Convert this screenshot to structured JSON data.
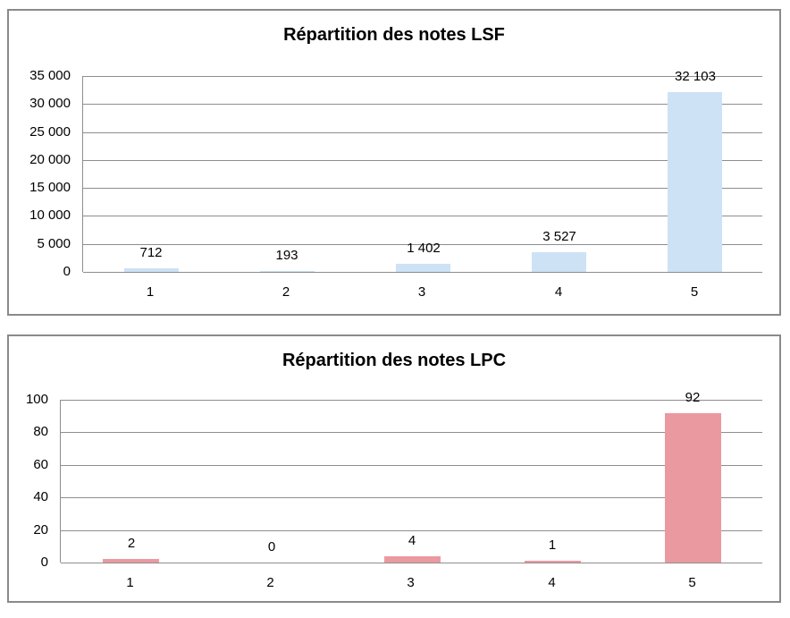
{
  "colors": {
    "panel_border": "#8a8a8a",
    "gridline": "#8e8e8e",
    "text": "#000000",
    "lsf_bar": "#cde2f5",
    "lpc_bar": "#eb99a0"
  },
  "chart_data": [
    {
      "type": "bar",
      "title": "Répartition des notes LSF",
      "categories": [
        "1",
        "2",
        "3",
        "4",
        "5"
      ],
      "values": [
        712,
        193,
        1402,
        3527,
        32103
      ],
      "value_labels": [
        "712",
        "193",
        "1 402",
        "3 527",
        "32 103"
      ],
      "xlabel": "",
      "ylabel": "",
      "ylim": [
        0,
        35000
      ],
      "ytick_step": 5000,
      "ytick_labels": [
        "0",
        "5 000",
        "10 000",
        "15 000",
        "20 000",
        "25 000",
        "30 000",
        "35 000"
      ],
      "grid": true,
      "legend": "none",
      "bar_color": "#cde2f5"
    },
    {
      "type": "bar",
      "title": "Répartition des notes LPC",
      "categories": [
        "1",
        "2",
        "3",
        "4",
        "5"
      ],
      "values": [
        2,
        0,
        4,
        1,
        92
      ],
      "value_labels": [
        "2",
        "0",
        "4",
        "1",
        "92"
      ],
      "xlabel": "",
      "ylabel": "",
      "ylim": [
        0,
        100
      ],
      "ytick_step": 20,
      "ytick_labels": [
        "0",
        "20",
        "40",
        "60",
        "80",
        "100"
      ],
      "grid": true,
      "legend": "none",
      "bar_color": "#eb99a0"
    }
  ]
}
